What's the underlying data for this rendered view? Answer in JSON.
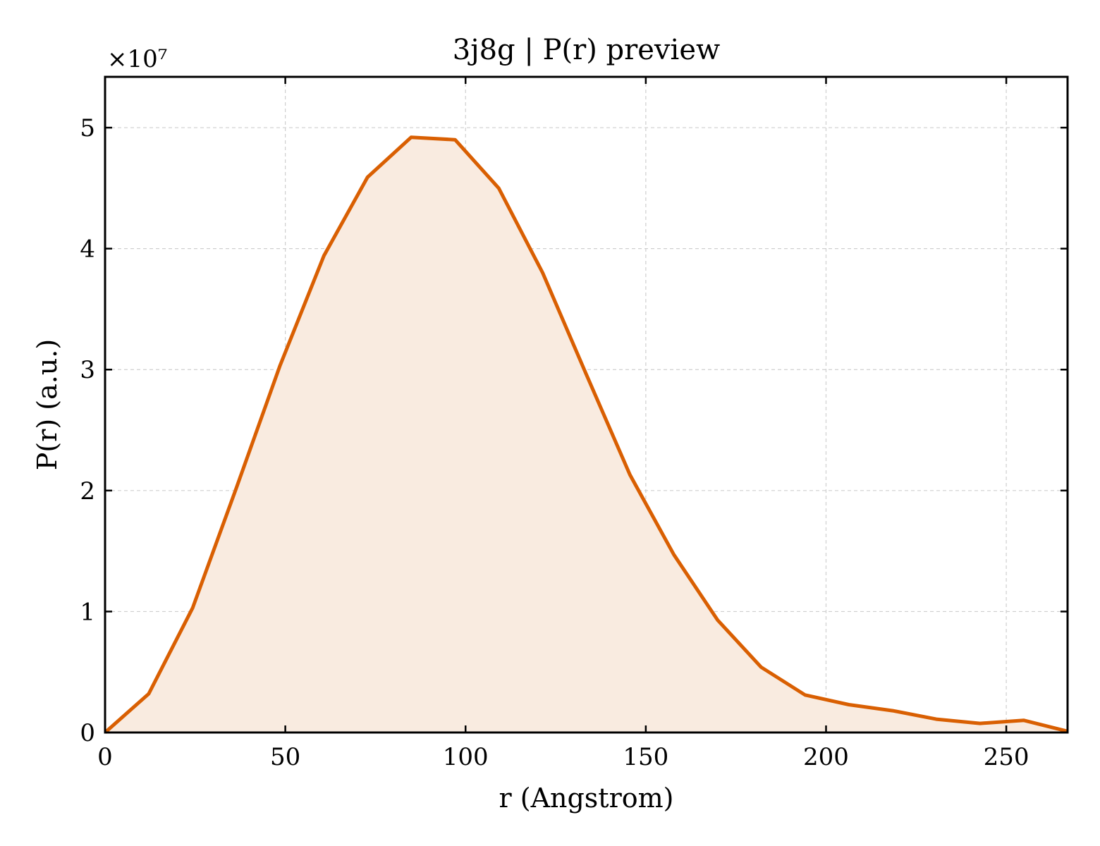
{
  "chart_data": {
    "type": "area",
    "title": "3j8g | P(r) preview",
    "xlabel": "r (Angstrom)",
    "ylabel": "P(r) (a.u.)",
    "y_multiplier_label": "×10⁷",
    "xlim": [
      0,
      267
    ],
    "ylim": [
      0,
      5.42
    ],
    "y_units_scale": 10000000,
    "xticks": [
      0,
      50,
      100,
      150,
      200,
      250
    ],
    "yticks": [
      0,
      1,
      2,
      3,
      4,
      5
    ],
    "grid": true,
    "series": [
      {
        "color": "#d95f02",
        "fill": "#f9ebe0",
        "x": [
          0,
          12.1,
          24.3,
          36.4,
          48.5,
          60.7,
          72.8,
          84.9,
          97.1,
          109.2,
          121.4,
          133.5,
          145.6,
          157.8,
          169.9,
          182.0,
          194.2,
          206.3,
          218.5,
          230.6,
          242.7,
          254.9,
          267.0
        ],
        "y": [
          0.0,
          0.32,
          1.03,
          2.02,
          3.03,
          3.94,
          4.59,
          4.92,
          4.9,
          4.5,
          3.8,
          2.96,
          2.13,
          1.47,
          0.93,
          0.54,
          0.31,
          0.23,
          0.18,
          0.11,
          0.075,
          0.1,
          0.01
        ]
      }
    ]
  }
}
